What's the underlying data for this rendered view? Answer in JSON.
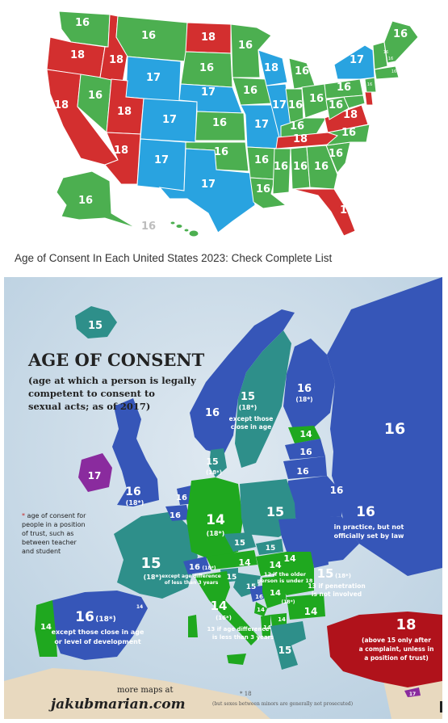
{
  "us_map": {
    "colors": {
      "age16": "#4caf50",
      "age17": "#29a3e0",
      "age18": "#d32f2f",
      "territory": "#bdbdbd"
    },
    "labels": [
      {
        "id": "wa",
        "text": "16"
      },
      {
        "id": "mt",
        "text": "16"
      },
      {
        "id": "nd",
        "text": "18"
      },
      {
        "id": "mn",
        "text": "16"
      },
      {
        "id": "me",
        "text": "16"
      },
      {
        "id": "or",
        "text": "18"
      },
      {
        "id": "id",
        "text": "18"
      },
      {
        "id": "wy",
        "text": "17"
      },
      {
        "id": "sd",
        "text": "16"
      },
      {
        "id": "wi",
        "text": "18"
      },
      {
        "id": "mi",
        "text": "16"
      },
      {
        "id": "ny",
        "text": "17"
      },
      {
        "id": "ne",
        "text": "17"
      },
      {
        "id": "ia",
        "text": "16"
      },
      {
        "id": "pa",
        "text": "16"
      },
      {
        "id": "ca",
        "text": "18"
      },
      {
        "id": "nv",
        "text": "16"
      },
      {
        "id": "ut",
        "text": "18"
      },
      {
        "id": "co",
        "text": "17"
      },
      {
        "id": "ks",
        "text": "16"
      },
      {
        "id": "mo",
        "text": "17"
      },
      {
        "id": "il",
        "text": "17"
      },
      {
        "id": "in",
        "text": "16"
      },
      {
        "id": "oh",
        "text": "16"
      },
      {
        "id": "wv",
        "text": "16"
      },
      {
        "id": "va",
        "text": "18"
      },
      {
        "id": "ky",
        "text": "16"
      },
      {
        "id": "tn",
        "text": "18"
      },
      {
        "id": "nc",
        "text": "16"
      },
      {
        "id": "az",
        "text": "18"
      },
      {
        "id": "nm",
        "text": "17"
      },
      {
        "id": "ok",
        "text": "16"
      },
      {
        "id": "ar",
        "text": "16"
      },
      {
        "id": "ms",
        "text": "16"
      },
      {
        "id": "al",
        "text": "16"
      },
      {
        "id": "ga",
        "text": "16"
      },
      {
        "id": "sc",
        "text": "16"
      },
      {
        "id": "tx",
        "text": "17"
      },
      {
        "id": "la",
        "text": "16"
      },
      {
        "id": "fl",
        "text": "18"
      },
      {
        "id": "ak",
        "text": "16"
      },
      {
        "id": "hi",
        "text": "16"
      }
    ]
  },
  "caption": "Age of Consent In Each United States 2023: Check Complete List",
  "europe_map": {
    "colors": {
      "age14": "#1fa81f",
      "age15": "#2e8f8a",
      "age16": "#3656b8",
      "age17": "#8a2b9e",
      "age18": "#b0121b",
      "sea": "#cfe0ec",
      "land_outside": "#e8d9bf"
    },
    "title": "AGE OF CONSENT",
    "subtitle": "(age at which a person is legally competent to consent to sexual acts; as of 2017)",
    "legend_note": "* age of consent for people in a position of trust, such as between teacher and student",
    "credit_top": "more maps at",
    "credit_site": "jakubmarian.com",
    "footnote": "(but sexes between minors are generally not prosecuted)",
    "footnote_symbol": "* 18",
    "labels": {
      "iceland": "15",
      "norway": "16",
      "sweden": "15",
      "sweden_star": "(18*)",
      "sweden_note": "except those close in age",
      "finland": "16",
      "finland_star": "(18*)",
      "russia": "16",
      "russia_note": "in practice, but not officially set by law",
      "estonia": "14",
      "latvia": "16",
      "lithuania": "16",
      "belarus": "16",
      "denmark": "15",
      "denmark_star": "(18*)",
      "ireland": "17",
      "uk": "16",
      "uk_star": "(18*)",
      "netherlands": "16",
      "belgium": "16",
      "germany": "14",
      "germany_star": "(18*)",
      "poland": "15",
      "czechia": "15",
      "austria": "14",
      "slovakia": "15",
      "ukraine": "16",
      "hungary": "14",
      "romania": "14",
      "romania_note": "12 if the older person is under 18",
      "moldova": "15",
      "moldova_star": "(18*)",
      "moldova_note": "13 if penetration is not involved",
      "france": "15",
      "france_star": "(18*)",
      "france_note": "except age difference of less than 3 years",
      "switzerland": "16",
      "switzerland_star": "(18*)",
      "italy": "14",
      "italy_star": "(16*)",
      "italy_note": "13 if age difference is less than 3 years",
      "spain": "16",
      "spain_star": "(18*)",
      "spain_note": "except those close in age or level of development",
      "portugal": "14",
      "andorra": "14",
      "slovenia": "15",
      "croatia": "15",
      "serbia": "14",
      "serbia_star": "(18*)",
      "bulgaria": "14",
      "montenegro": "14",
      "macedonia": "14",
      "albania": "14",
      "bosnia": "16",
      "greece": "15",
      "turkey": "18",
      "turkey_note": "(above 15 only after a complaint, unless in a position of trust)",
      "cyprus": "17"
    }
  }
}
